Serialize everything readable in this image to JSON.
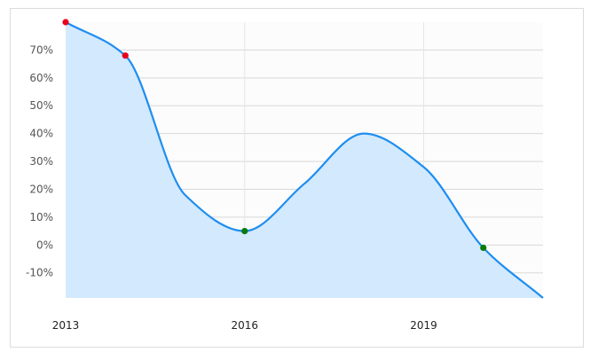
{
  "chart_data": {
    "type": "area",
    "title": "",
    "xlabel": "",
    "ylabel": "",
    "x_ticks": [
      "2013",
      "2016",
      "2019"
    ],
    "y_ticks": [
      "-10%",
      "0%",
      "10%",
      "20%",
      "30%",
      "40%",
      "50%",
      "60%",
      "70%"
    ],
    "xlim": [
      2013,
      2021
    ],
    "ylim": [
      -19,
      80
    ],
    "grid": true,
    "legend": "none",
    "series": [
      {
        "points": [
          {
            "x": 2013,
            "y": 80
          },
          {
            "x": 2014,
            "y": 68
          },
          {
            "x": 2015,
            "y": 18
          },
          {
            "x": 2016,
            "y": 5
          },
          {
            "x": 2017,
            "y": 22
          },
          {
            "x": 2018,
            "y": 40
          },
          {
            "x": 2019,
            "y": 28
          },
          {
            "x": 2020,
            "y": -1
          },
          {
            "x": 2021,
            "y": -19
          }
        ],
        "markers": [
          {
            "x": 2013,
            "y": 80,
            "color": "#e8001c"
          },
          {
            "x": 2014,
            "y": 68,
            "color": "#e8001c"
          },
          {
            "x": 2016,
            "y": 5,
            "color": "#0a7a0a"
          },
          {
            "x": 2020,
            "y": -1,
            "color": "#0a7a0a"
          }
        ]
      }
    ],
    "colors": {
      "line": "#1e8ef0",
      "fill": "#d3e9fd",
      "plot_bg": "#fcfcfc",
      "grid": "#d9d9d9"
    }
  }
}
